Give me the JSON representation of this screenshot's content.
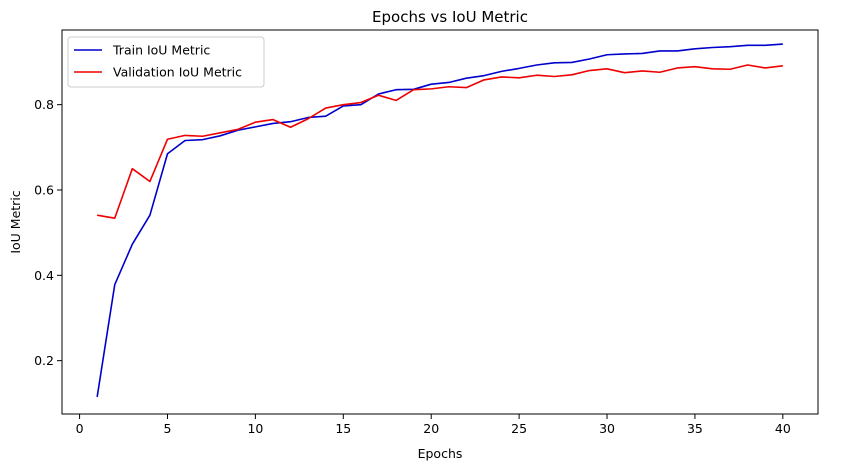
{
  "chart_data": {
    "type": "line",
    "title": "Epochs vs IoU Metric",
    "xlabel": "Epochs",
    "ylabel": "IoU Metric",
    "xlim": [
      -1,
      42
    ],
    "ylim": [
      0.075,
      0.975
    ],
    "xticks": [
      0,
      5,
      10,
      15,
      20,
      25,
      30,
      35,
      40
    ],
    "yticks": [
      0.2,
      0.4,
      0.6,
      0.8
    ],
    "grid": false,
    "legend_position": "top-left",
    "x": [
      1,
      2,
      3,
      4,
      5,
      6,
      7,
      8,
      9,
      10,
      11,
      12,
      13,
      14,
      15,
      16,
      17,
      18,
      19,
      20,
      21,
      22,
      23,
      24,
      25,
      26,
      27,
      28,
      29,
      30,
      31,
      32,
      33,
      34,
      35,
      36,
      37,
      38,
      39,
      40
    ],
    "series": [
      {
        "name": "Train IoU Metric",
        "color": "#0000cc",
        "values": [
          0.115,
          0.378,
          0.473,
          0.541,
          0.685,
          0.716,
          0.718,
          0.727,
          0.74,
          0.748,
          0.756,
          0.76,
          0.77,
          0.773,
          0.797,
          0.8,
          0.825,
          0.835,
          0.836,
          0.848,
          0.852,
          0.862,
          0.868,
          0.878,
          0.885,
          0.893,
          0.898,
          0.899,
          0.907,
          0.917,
          0.919,
          0.92,
          0.926,
          0.926,
          0.931,
          0.934,
          0.936,
          0.939,
          0.939,
          0.942
        ]
      },
      {
        "name": "Validation IoU Metric",
        "color": "#ee0000",
        "values": [
          0.541,
          0.534,
          0.65,
          0.62,
          0.719,
          0.728,
          0.726,
          0.734,
          0.742,
          0.759,
          0.765,
          0.747,
          0.767,
          0.792,
          0.8,
          0.805,
          0.822,
          0.81,
          0.835,
          0.837,
          0.842,
          0.84,
          0.858,
          0.865,
          0.863,
          0.869,
          0.866,
          0.87,
          0.88,
          0.884,
          0.875,
          0.879,
          0.876,
          0.886,
          0.889,
          0.884,
          0.883,
          0.893,
          0.886,
          0.891
        ]
      }
    ]
  }
}
